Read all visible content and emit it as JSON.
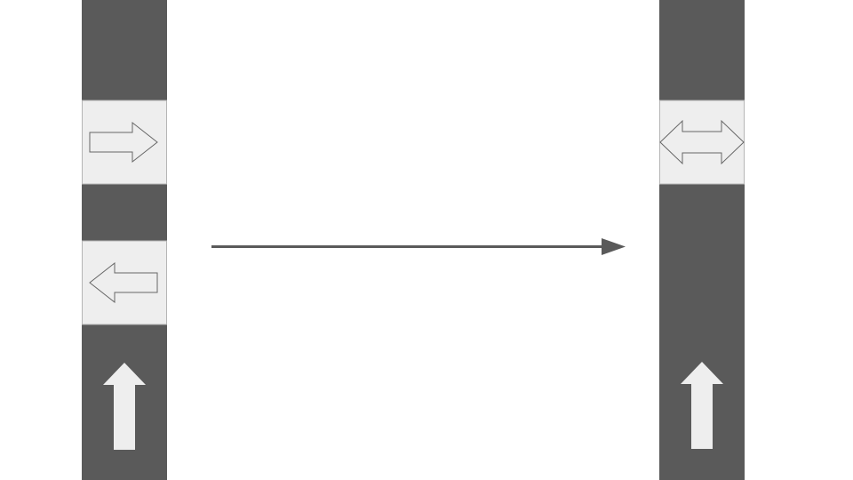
{
  "diagram": {
    "colors": {
      "strip": "#5a5a5a",
      "tile": "#eeeeee",
      "tile_border": "#b5b5b5",
      "outline_arrow_stroke": "#666666",
      "solid_arrow": "#eeeeee",
      "connector": "#5a5a5a",
      "background": "#ffffff"
    },
    "before_strip": {
      "tiles": [
        {
          "icon": "right-arrow-outline-icon"
        },
        {
          "icon": "left-arrow-outline-icon"
        }
      ],
      "bottom_icon": "up-arrow-icon"
    },
    "transition_arrow": {
      "icon": "right-arrow-icon"
    },
    "after_strip": {
      "tiles": [
        {
          "icon": "left-right-arrow-outline-icon"
        }
      ],
      "bottom_icon": "up-arrow-icon"
    }
  }
}
